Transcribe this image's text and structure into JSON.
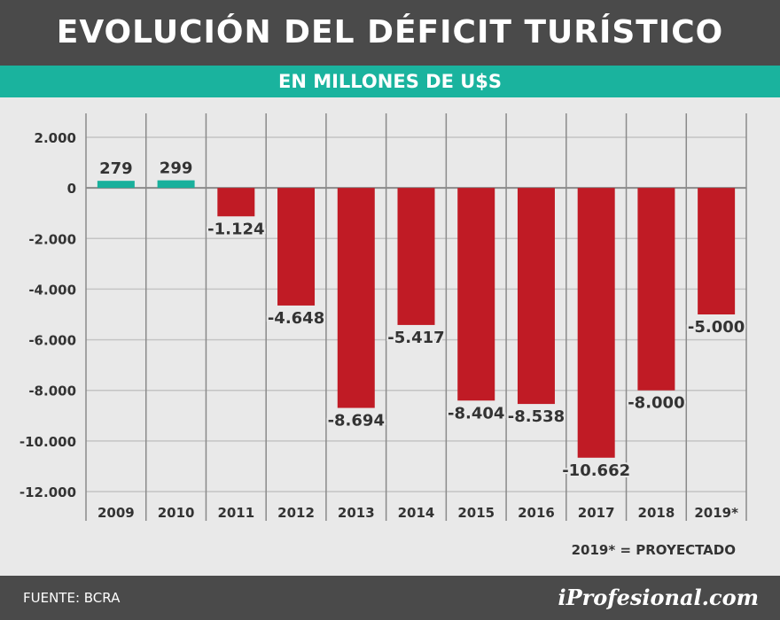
{
  "header": {
    "title": "EVOLUCIÓN DEL DÉFICIT TURÍSTICO",
    "subtitle": "EN MILLONES DE U$S"
  },
  "footer": {
    "source": "FUENTE: BCRA",
    "brand": "iProfesional.com"
  },
  "note": "2019* = PROYECTADO",
  "chart_data": {
    "type": "bar",
    "title": "EVOLUCIÓN DEL DÉFICIT TURÍSTICO",
    "subtitle": "EN MILLONES DE U$S",
    "categories": [
      "2009",
      "2010",
      "2011",
      "2012",
      "2013",
      "2014",
      "2015",
      "2016",
      "2017",
      "2018",
      "2019*"
    ],
    "values": [
      279,
      299,
      -1124,
      -4648,
      -8694,
      -5417,
      -8404,
      -8538,
      -10662,
      -8000,
      -5000
    ],
    "value_labels": [
      "279",
      "299",
      "-1.124",
      "-4.648",
      "-8.694",
      "-5.417",
      "-8.404",
      "-8.538",
      "-10.662",
      "-8.000",
      "-5.000"
    ],
    "ylim": [
      -12000,
      2000
    ],
    "yticks": [
      2000,
      0,
      -2000,
      -4000,
      -6000,
      -8000,
      -10000,
      -12000
    ],
    "ytick_labels": [
      "2.000",
      "0",
      "-2.000",
      "-4.000",
      "-6.000",
      "-8.000",
      "-10.000",
      "-12.000"
    ],
    "xlabel": "",
    "ylabel": "",
    "grid": true,
    "colors": {
      "positive": "#19b09c",
      "negative": "#c01b25"
    }
  }
}
